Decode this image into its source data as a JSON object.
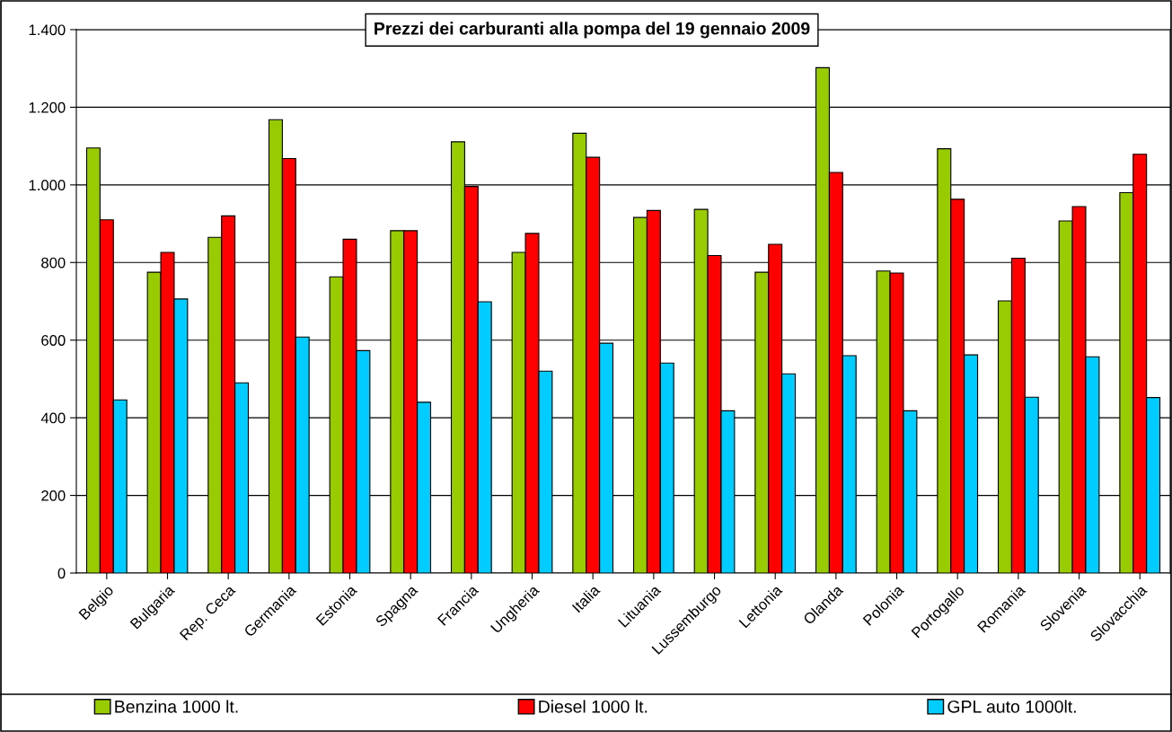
{
  "chart_data": {
    "type": "bar",
    "title": "Prezzi dei carburanti alla pompa del 19 gennaio 2009",
    "categories": [
      "Belgio",
      "Bulgaria",
      "Rep. Ceca",
      "Germania",
      "Estonia",
      "Spagna",
      "Francia",
      "Ungheria",
      "Italia",
      "Lituania",
      "Lussemburgo",
      "Lettonia",
      "Olanda",
      "Polonia",
      "Portogallo",
      "Romania",
      "Slovenia",
      "Slovacchia"
    ],
    "series": [
      {
        "name": "Benzina 1000 lt.",
        "color": "#99cc00",
        "values": [
          1095,
          775,
          865,
          1168,
          763,
          882,
          1111,
          826,
          1133,
          916,
          937,
          775,
          1302,
          778,
          1093,
          701,
          907,
          980
        ]
      },
      {
        "name": "Diesel 1000 lt.",
        "color": "#ff0000",
        "values": [
          910,
          826,
          920,
          1068,
          860,
          882,
          996,
          875,
          1071,
          934,
          818,
          847,
          1032,
          773,
          963,
          811,
          944,
          1079
        ]
      },
      {
        "name": "GPL auto 1000lt.",
        "color": "#00ccff",
        "values": [
          446,
          706,
          490,
          608,
          573,
          440,
          699,
          520,
          592,
          541,
          418,
          513,
          560,
          418,
          562,
          453,
          557,
          452
        ]
      }
    ],
    "ylim": [
      0,
      1400
    ],
    "yticks": [
      0,
      200,
      400,
      600,
      800,
      {
        "value": 1000,
        "label": "1.000"
      },
      {
        "value": 1200,
        "label": "1.200"
      },
      {
        "value": 1400,
        "label": "1.400"
      }
    ],
    "grid": "y",
    "legend": "bottom"
  }
}
